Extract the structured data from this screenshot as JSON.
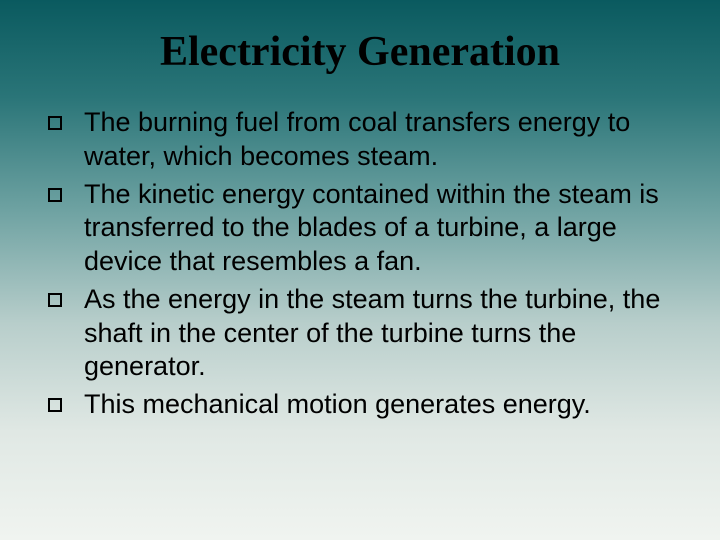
{
  "slide": {
    "title": "Electricity Generation",
    "bullets": [
      {
        "text": "The burning fuel from coal transfers energy to water, which becomes steam."
      },
      {
        "text": "The kinetic energy contained within the steam is transferred to the blades of a turbine, a large device that resembles a fan."
      },
      {
        "text": "As the energy in the steam turns the turbine, the shaft in the center of the turbine turns the generator."
      },
      {
        "text": "This mechanical motion generates energy."
      }
    ],
    "styling": {
      "background_gradient": [
        "#0a5a5f",
        "#2a7578",
        "#6ba0a0",
        "#b8cecb",
        "#e0e8e4",
        "#f0f4f0"
      ],
      "title_font": "Times New Roman",
      "title_fontsize": 42,
      "title_weight": "bold",
      "title_color": "#000000",
      "body_font": "Arial",
      "body_fontsize": 27,
      "body_color": "#000000",
      "bullet_marker": "hollow-square",
      "bullet_marker_size": 14,
      "bullet_marker_border": "#000000",
      "slide_width": 720,
      "slide_height": 540
    }
  }
}
